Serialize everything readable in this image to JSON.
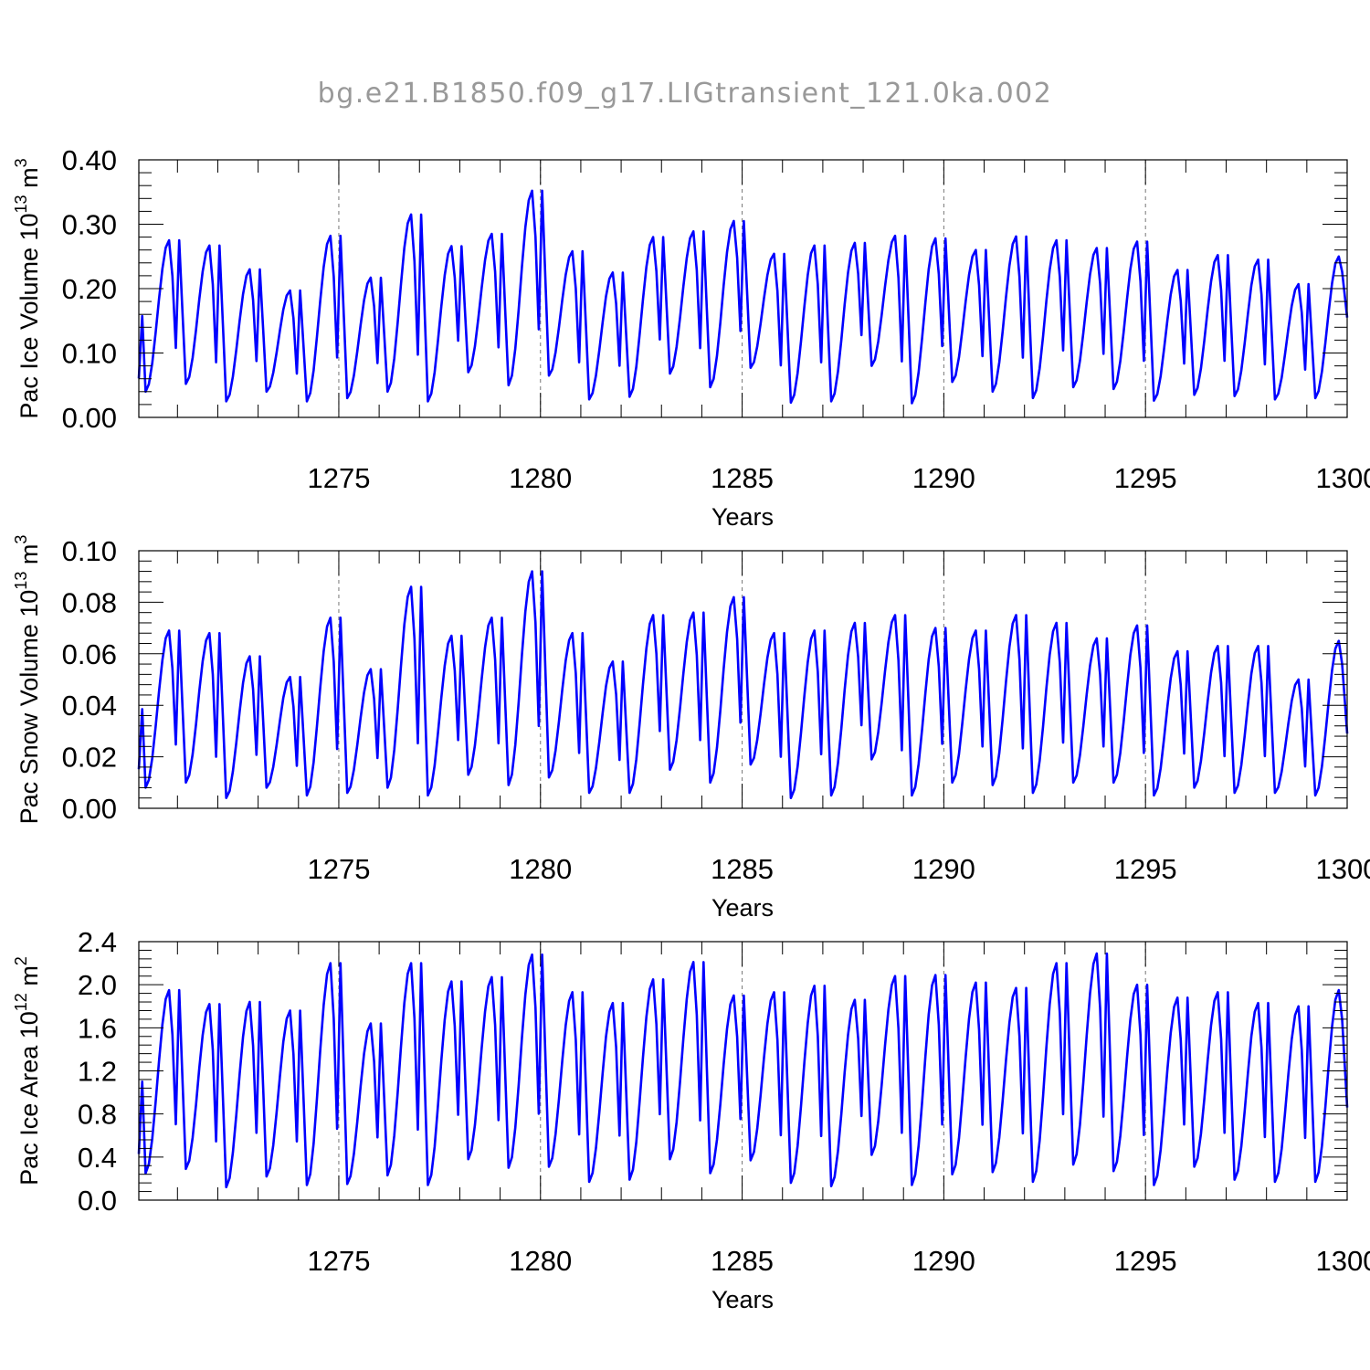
{
  "figure": {
    "title": "bg.e21.B1850.f09_g17.LIGtransient_121.0ka.002",
    "line_color": "#0000ff",
    "grid_color": "#777777",
    "axis_color": "#000000",
    "title_color": "#999999"
  },
  "chart_data": [
    {
      "type": "line",
      "series_name": "Pac Ice Volume",
      "ylabel_main": "Pac Ice Volume 10",
      "ylabel_exp1": "13",
      "ylabel_unit": " m",
      "ylabel_exp2": "3",
      "xlabel": "Years",
      "xlim": [
        1270.042,
        1300.0
      ],
      "ylim": [
        0.0,
        0.4
      ],
      "yticks": [
        0.0,
        0.1,
        0.2,
        0.3,
        0.4
      ],
      "ytick_labels": [
        "0.00",
        "0.10",
        "0.20",
        "0.30",
        "0.40"
      ],
      "xticks": [
        1275,
        1280,
        1285,
        1290,
        1295,
        1300
      ],
      "xtick_labels": [
        "1275",
        "1280",
        "1285",
        "1290",
        "1295",
        "1300"
      ],
      "vgrid": [
        1275,
        1280,
        1285,
        1290,
        1295
      ],
      "peaks": [
        0.275,
        0.267,
        0.23,
        0.197,
        0.282,
        0.217,
        0.315,
        0.266,
        0.285,
        0.352,
        0.258,
        0.225,
        0.28,
        0.289,
        0.305,
        0.254,
        0.267,
        0.271,
        0.282,
        0.278,
        0.26,
        0.281,
        0.275,
        0.263,
        0.273,
        0.229,
        0.252,
        0.245,
        0.207,
        0.25
      ],
      "troughs": [
        0.04,
        0.052,
        0.025,
        0.04,
        0.025,
        0.03,
        0.04,
        0.025,
        0.07,
        0.05,
        0.065,
        0.028,
        0.032,
        0.068,
        0.047,
        0.077,
        0.023,
        0.025,
        0.08,
        0.022,
        0.055,
        0.04,
        0.03,
        0.047,
        0.044,
        0.026,
        0.035,
        0.033,
        0.028,
        0.03
      ],
      "end_value": 0.155
    },
    {
      "type": "line",
      "series_name": "Pac Snow Volume",
      "ylabel_main": "Pac Snow Volume 10",
      "ylabel_exp1": "13",
      "ylabel_unit": " m",
      "ylabel_exp2": "3",
      "xlabel": "Years",
      "xlim": [
        1270.042,
        1300.0
      ],
      "ylim": [
        0.0,
        0.1
      ],
      "yticks": [
        0.0,
        0.02,
        0.04,
        0.06,
        0.08,
        0.1
      ],
      "ytick_labels": [
        "0.00",
        "0.02",
        "0.04",
        "0.06",
        "0.08",
        "0.10"
      ],
      "xticks": [
        1275,
        1280,
        1285,
        1290,
        1295,
        1300
      ],
      "xtick_labels": [
        "1275",
        "1280",
        "1285",
        "1290",
        "1295",
        "1300"
      ],
      "vgrid": [
        1275,
        1280,
        1285,
        1290,
        1295
      ],
      "peaks": [
        0.069,
        0.068,
        0.059,
        0.051,
        0.074,
        0.054,
        0.086,
        0.067,
        0.074,
        0.092,
        0.068,
        0.057,
        0.075,
        0.076,
        0.082,
        0.068,
        0.069,
        0.072,
        0.075,
        0.07,
        0.069,
        0.075,
        0.072,
        0.066,
        0.071,
        0.061,
        0.063,
        0.063,
        0.05,
        0.065
      ],
      "troughs": [
        0.008,
        0.01,
        0.004,
        0.008,
        0.005,
        0.006,
        0.008,
        0.005,
        0.013,
        0.009,
        0.012,
        0.006,
        0.006,
        0.015,
        0.01,
        0.017,
        0.004,
        0.005,
        0.019,
        0.005,
        0.01,
        0.009,
        0.006,
        0.01,
        0.01,
        0.005,
        0.008,
        0.006,
        0.006,
        0.005
      ],
      "end_value": 0.029
    },
    {
      "type": "line",
      "series_name": "Pac Ice Area",
      "ylabel_main": "Pac Ice Area 10",
      "ylabel_exp1": "12",
      "ylabel_unit": " m",
      "ylabel_exp2": "2",
      "xlabel": "Years",
      "xlim": [
        1270.042,
        1300.0
      ],
      "ylim": [
        0.0,
        2.4
      ],
      "yticks": [
        0.0,
        0.4,
        0.8,
        1.2,
        1.6,
        2.0,
        2.4
      ],
      "ytick_labels": [
        "0.0",
        "0.4",
        "0.8",
        "1.2",
        "1.6",
        "2.0",
        "2.4"
      ],
      "xticks": [
        1275,
        1280,
        1285,
        1290,
        1295,
        1300
      ],
      "xtick_labels": [
        "1275",
        "1280",
        "1285",
        "1290",
        "1295",
        "1300"
      ],
      "vgrid": [
        1275,
        1280,
        1285,
        1290,
        1295
      ],
      "peaks": [
        1.95,
        1.82,
        1.84,
        1.76,
        2.2,
        1.64,
        2.2,
        2.03,
        2.07,
        2.28,
        1.93,
        1.83,
        2.05,
        2.21,
        1.9,
        1.93,
        1.99,
        1.86,
        2.08,
        2.09,
        2.02,
        1.97,
        2.2,
        2.29,
        2.0,
        1.88,
        1.93,
        1.83,
        1.8,
        1.95
      ],
      "troughs": [
        0.25,
        0.29,
        0.12,
        0.22,
        0.14,
        0.15,
        0.23,
        0.14,
        0.38,
        0.3,
        0.31,
        0.17,
        0.19,
        0.38,
        0.25,
        0.37,
        0.16,
        0.13,
        0.42,
        0.14,
        0.24,
        0.26,
        0.17,
        0.33,
        0.27,
        0.14,
        0.31,
        0.19,
        0.17,
        0.17
      ],
      "end_value": 0.86
    }
  ]
}
